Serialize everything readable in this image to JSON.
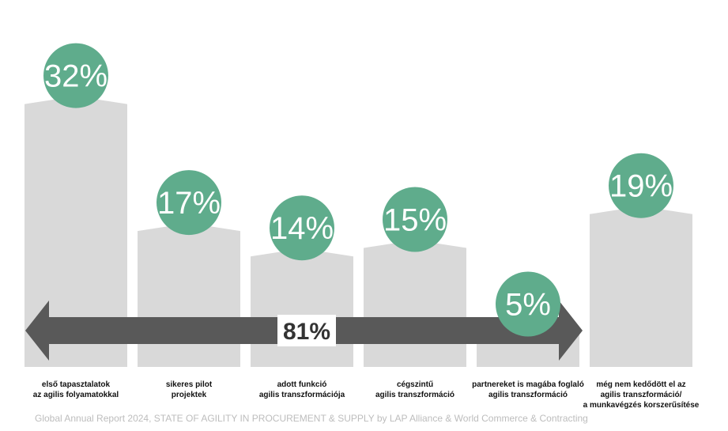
{
  "chart_data": {
    "type": "bar",
    "categories": [
      "első tapasztalatok\naz agilis folyamatokkal",
      "sikeres pilot\nprojektek",
      "adott funkció\nagilis transzformációja",
      "cégszintű\nagilis transzformáció",
      "partnereket is magába foglaló\nagilis transzformáció",
      "még nem kedődött el az\nagilis transzformáció/\na munkavégzés korszerűsítése"
    ],
    "values": [
      32,
      17,
      14,
      15,
      5,
      19
    ],
    "value_labels": [
      "32%",
      "17%",
      "14%",
      "15%",
      "5%",
      "19%"
    ],
    "ylim": [
      0,
      40
    ],
    "arrow_label": "81%",
    "colors": {
      "bar": "#d9d9d9",
      "circle": "#5fac8c",
      "circle_text": "#ffffff",
      "arrow": "#595959"
    }
  },
  "footer": "Global Annual Report 2024, STATE OF AGILITY IN PROCUREMENT & SUPPLY by LAP Alliance & World Commerce & Contracting"
}
